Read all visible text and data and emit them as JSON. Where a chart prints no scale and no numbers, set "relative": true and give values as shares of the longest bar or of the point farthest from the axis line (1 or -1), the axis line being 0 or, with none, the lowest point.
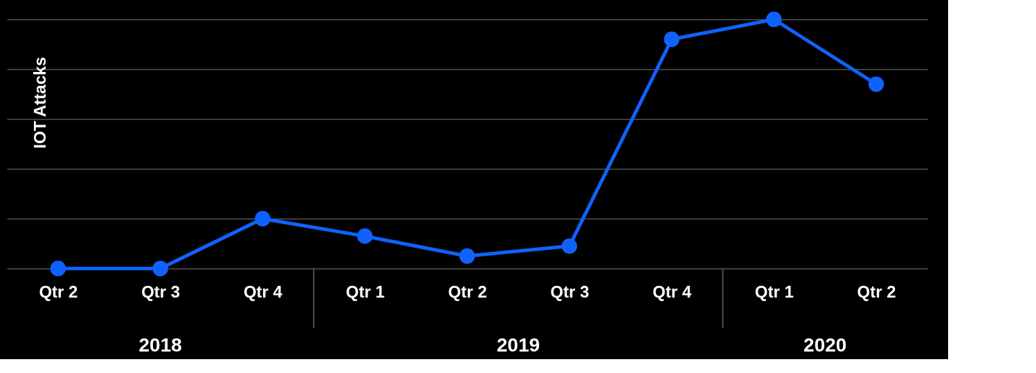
{
  "chart_data": {
    "type": "line",
    "ylabel": "IOT Attacks",
    "relative": true,
    "grid": "y",
    "marker": "circle",
    "line_style": "solid",
    "categories": [
      "Qtr 2",
      "Qtr 3",
      "Qtr 4",
      "Qtr 1",
      "Qtr 2",
      "Qtr 3",
      "Qtr 4",
      "Qtr 1",
      "Qtr 2"
    ],
    "series": [
      {
        "color": "#0f62fe",
        "values": [
          0,
          0,
          0.2,
          0.13,
          0.05,
          0.09,
          0.92,
          1,
          0.74
        ]
      }
    ],
    "annotations": [
      "2018",
      "2019",
      "2020"
    ]
  }
}
